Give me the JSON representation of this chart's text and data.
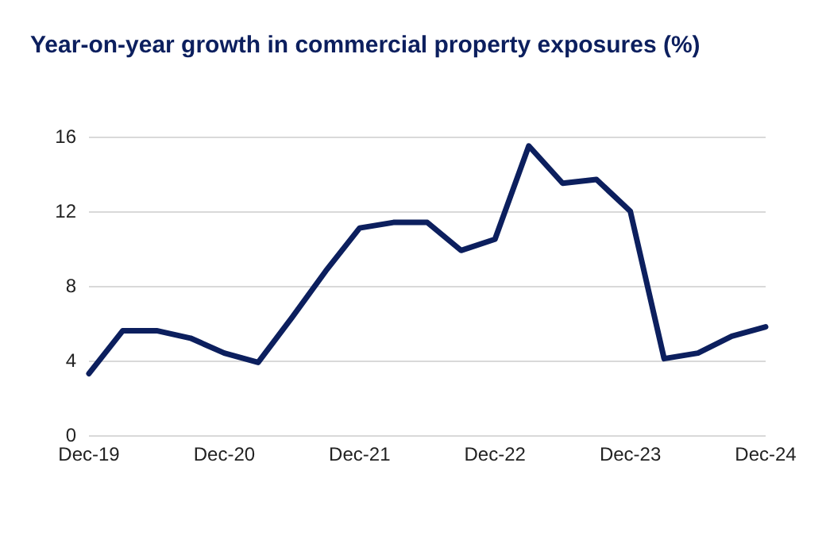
{
  "chart_data": {
    "type": "line",
    "title": "Year-on-year growth in commercial property exposures (%)",
    "categories": [
      "Dec-19",
      null,
      null,
      null,
      "Dec-20",
      null,
      null,
      null,
      "Dec-21",
      null,
      null,
      null,
      "Dec-22",
      null,
      null,
      null,
      "Dec-23",
      null,
      null,
      null,
      "Dec-24"
    ],
    "series": [
      {
        "color": "#0c1f5e",
        "values": [
          3.3,
          5.6,
          5.6,
          5.2,
          4.4,
          3.9,
          6.3,
          8.8,
          11.1,
          11.4,
          11.4,
          9.9,
          10.5,
          15.5,
          13.5,
          13.7,
          12.0,
          4.1,
          4.4,
          5.3,
          5.8
        ]
      }
    ],
    "ylim": [
      0,
      16
    ],
    "yticks": [
      0,
      4,
      8,
      12,
      16
    ],
    "grid": "y",
    "marker": "none",
    "line_style": "solid"
  }
}
